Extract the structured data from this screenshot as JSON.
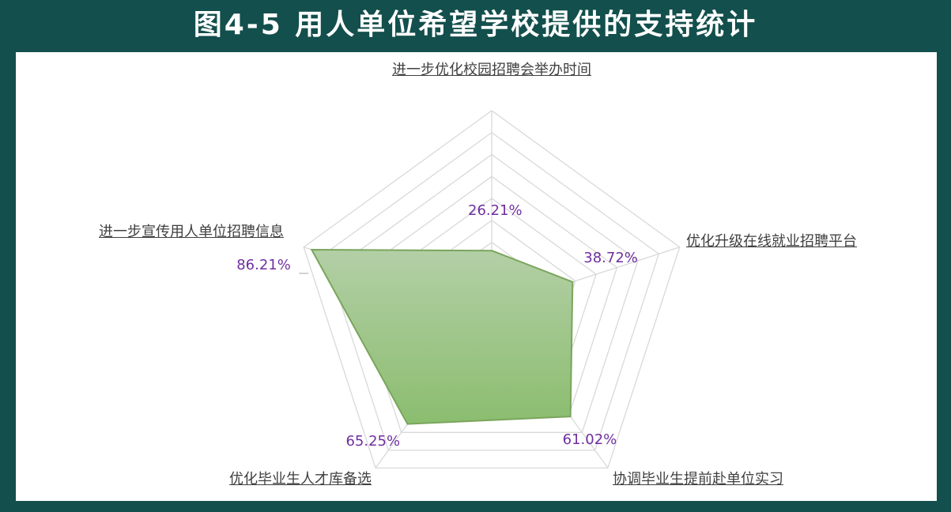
{
  "chart_data": {
    "type": "radar",
    "title": "图4-5 用人单位希望学校提供的支持统计",
    "categories": [
      "进一步优化校园招聘会举办时间",
      "优化升级在线就业招聘平台",
      "协调毕业生提前赴单位实习",
      "优化毕业生人才库备选",
      "进一步宣传用人单位招聘信息"
    ],
    "values": [
      26.21,
      38.72,
      61.02,
      65.25,
      86.21
    ],
    "value_labels": [
      "26.21%",
      "38.72%",
      "61.02%",
      "65.25%",
      "86.21%"
    ],
    "color": "#97c27f",
    "rlim": [
      0,
      90
    ],
    "rticks": [
      0,
      10,
      20,
      30,
      40,
      50,
      60,
      70,
      80,
      90
    ],
    "grid": true
  }
}
